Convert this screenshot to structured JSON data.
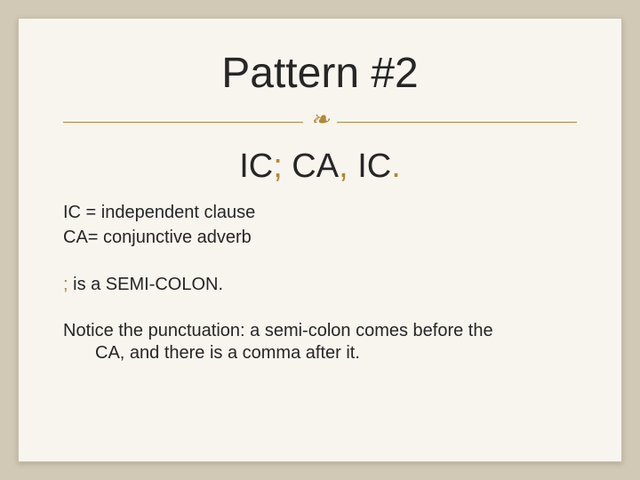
{
  "colors": {
    "background_outer": "#d1c8b5",
    "background_slide": "#f8f5ef",
    "border_slide": "#c8bfa8",
    "text_primary": "#262626",
    "accent": "#b08838"
  },
  "typography": {
    "title_fontsize": 48,
    "subtitle_fontsize": 38,
    "body_fontsize": 20,
    "font_family": "Arial"
  },
  "title": "Pattern #2",
  "divider_ornament": "❧",
  "subtitle": {
    "part1": "IC",
    "semicolon": ";",
    "part2": " CA",
    "comma": ",",
    "part3": " IC",
    "period": "."
  },
  "definitions": {
    "ic": "IC = independent clause",
    "ca": "CA= conjunctive adverb"
  },
  "semicolon_line": {
    "accent": ";",
    "rest": " is a SEMI-COLON."
  },
  "notice": {
    "line1": "Notice the punctuation: a semi-colon comes before the",
    "line2": "CA, and there is a comma after it."
  }
}
